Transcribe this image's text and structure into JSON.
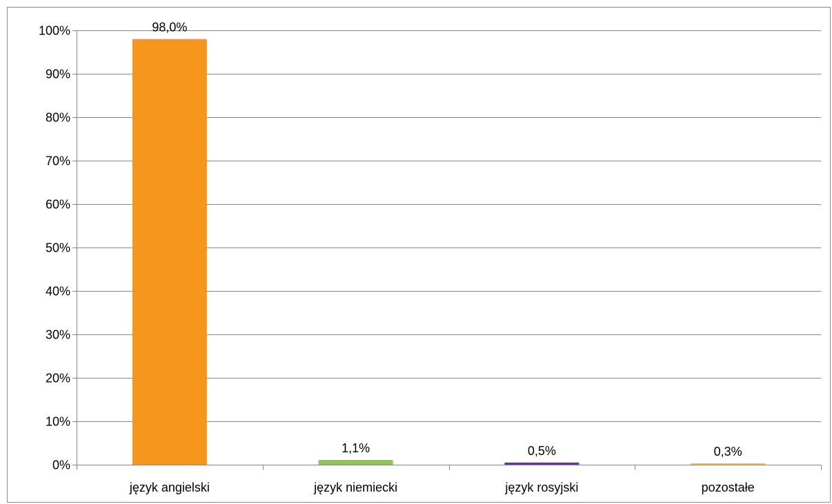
{
  "chart_data": {
    "type": "bar",
    "categories": [
      "język angielski",
      "język niemiecki",
      "język rosyjski",
      "pozostałe"
    ],
    "values": [
      98.0,
      1.1,
      0.5,
      0.3
    ],
    "data_labels": [
      "98,0%",
      "1,1%",
      "0,5%",
      "0,3%"
    ],
    "colors": [
      "#F7961D",
      "#8CC850",
      "#7030A0",
      "#F0C050"
    ],
    "ylim": [
      0,
      100
    ],
    "ytick_values": [
      0,
      10,
      20,
      30,
      40,
      50,
      60,
      70,
      80,
      90,
      100
    ],
    "ytick_labels": [
      "0%",
      "10%",
      "20%",
      "30%",
      "40%",
      "50%",
      "60%",
      "70%",
      "80%",
      "90%",
      "100%"
    ],
    "grid": true,
    "gridline_color": "#868686",
    "title": "",
    "xlabel": "",
    "ylabel": ""
  }
}
